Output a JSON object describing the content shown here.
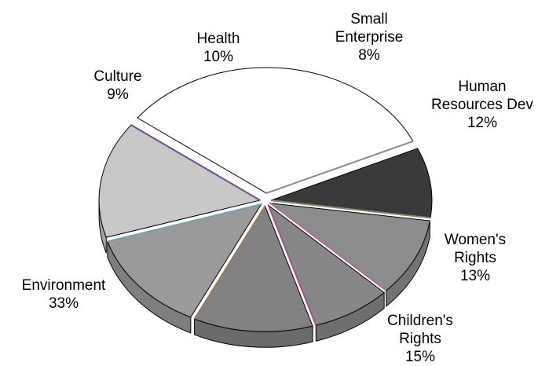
{
  "chart_data": {
    "type": "pie",
    "style": "3d-exploded",
    "title": "",
    "slices": [
      {
        "name": "Health",
        "line1": "Health",
        "line2": "",
        "pct_label": "10%",
        "value": 10,
        "color": "#8c8c8c",
        "edge": "#b06b96"
      },
      {
        "name": "Small Enterprise",
        "line1": "Small",
        "line2": "Enterprise",
        "pct_label": "8%",
        "value": 8,
        "color": "#878787",
        "edge": "#a64f8a"
      },
      {
        "name": "Human Resources Dev",
        "line1": "Human",
        "line2": "Resources Dev",
        "pct_label": "12%",
        "value": 12,
        "color": "#828282",
        "edge": "#9a7a5c"
      },
      {
        "name": "Women's Rights",
        "line1": "Women's",
        "line2": "Rights",
        "pct_label": "13%",
        "value": 13,
        "color": "#9a9a9a",
        "edge": "#6fa3a8"
      },
      {
        "name": "Children's Rights",
        "line1": "Children's",
        "line2": "Rights",
        "pct_label": "15%",
        "value": 15,
        "color": "#c8c8c8",
        "edge": "#6a4e8c"
      },
      {
        "name": "Environment",
        "line1": "Environment",
        "line2": "",
        "pct_label": "33%",
        "value": 33,
        "color": "#ffffff",
        "edge": "#8a8a8a"
      },
      {
        "name": "Culture",
        "line1": "Culture",
        "line2": "",
        "pct_label": "9%",
        "value": 9,
        "color": "#3a3a3a",
        "edge": "#7a8a6a"
      }
    ]
  }
}
